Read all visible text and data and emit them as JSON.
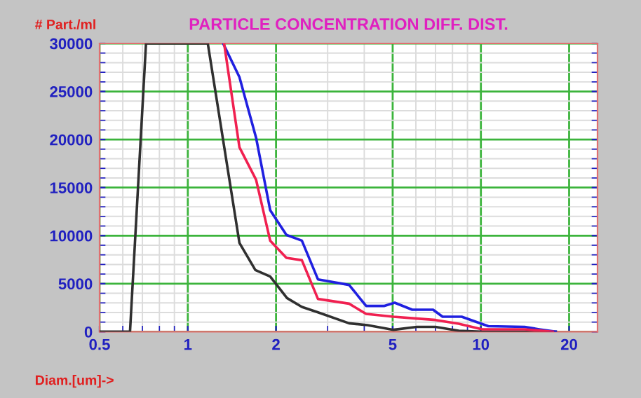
{
  "chart_data": {
    "type": "line",
    "title": "PARTICLE CONCENTRATION DIFF. DIST.",
    "ylabel": "# Part./ml",
    "xlabel": "Diam.[um]->",
    "log": "x",
    "grid": true,
    "legend": false,
    "marker": "none",
    "line_style": "solid",
    "xlim": [
      0.5,
      25
    ],
    "xticks": [
      0.5,
      1,
      2,
      5,
      10,
      20
    ],
    "ylim": [
      0,
      30000
    ],
    "yticks": [
      0,
      5000,
      10000,
      15000,
      20000,
      25000,
      30000
    ],
    "series": [
      {
        "color": "#303030",
        "x": [
          0.5,
          0.635,
          0.72,
          1.17,
          1.5,
          1.7,
          1.91,
          2.18,
          2.45,
          2.77,
          3.55,
          4.1,
          5.03,
          6.05,
          7.0,
          8.4,
          10,
          18
        ],
        "values": [
          0,
          0,
          30000,
          30000,
          9250,
          6420,
          5750,
          3500,
          2580,
          2040,
          875,
          690,
          200,
          500,
          500,
          100,
          0,
          0
        ]
      },
      {
        "color": "#2020e0",
        "x": [
          1.32,
          1.5,
          1.71,
          1.91,
          2.17,
          2.45,
          2.78,
          3.55,
          4.06,
          4.67,
          5.08,
          5.83,
          6.87,
          7.4,
          8.6,
          10.6,
          14.1,
          15.8,
          18
        ],
        "values": [
          30000,
          26500,
          20180,
          12650,
          10070,
          9480,
          5450,
          4870,
          2680,
          2680,
          3020,
          2290,
          2290,
          1560,
          1560,
          580,
          500,
          250,
          0
        ]
      },
      {
        "color": "#f02050",
        "x": [
          1.33,
          1.5,
          1.71,
          1.91,
          2.17,
          2.45,
          2.78,
          3.55,
          4.06,
          5.03,
          6.05,
          7.0,
          8.4,
          10.1,
          14.1,
          17.6
        ],
        "values": [
          30000,
          19200,
          15810,
          9480,
          7690,
          7440,
          3410,
          2920,
          1850,
          1560,
          1370,
          1220,
          830,
          250,
          250,
          0
        ]
      }
    ]
  }
}
